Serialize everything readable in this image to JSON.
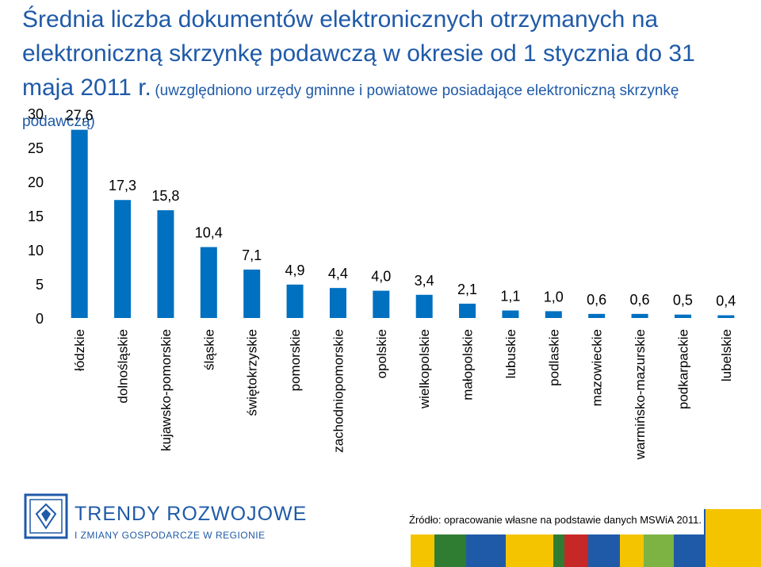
{
  "title": {
    "main": "Średnia liczba dokumentów elektronicznych otrzymanych na elektroniczną skrzynkę podawczą w okresie od 1 stycznia do 31 maja 2011 r.",
    "subtitle": "(uwzględniono urzędy gminne i powiatowe posiadające elektroniczną skrzynkę podawczą)"
  },
  "chart_data": {
    "type": "bar",
    "categories": [
      "łódzkie",
      "dolnośląskie",
      "kujawsko-pomorskie",
      "śląskie",
      "świętokrzyskie",
      "pomorskie",
      "zachodniopomorskie",
      "opolskie",
      "wielkopolskie",
      "małopolskie",
      "lubuskie",
      "podlaskie",
      "mazowieckie",
      "warmińsko-mazurskie",
      "podkarpackie",
      "lubelskie"
    ],
    "values": [
      27.6,
      17.3,
      15.8,
      10.4,
      7.1,
      4.9,
      4.4,
      4.0,
      3.4,
      2.1,
      1.1,
      1.0,
      0.6,
      0.6,
      0.5,
      0.4
    ],
    "value_labels": [
      "27,6",
      "17,3",
      "15,8",
      "10,4",
      "7,1",
      "4,9",
      "4,4",
      "4,0",
      "3,4",
      "2,1",
      "1,1",
      "1,0",
      "0,6",
      "0,6",
      "0,5",
      "0,4"
    ],
    "y_ticks": [
      "0",
      "5",
      "10",
      "15",
      "20",
      "25",
      "30"
    ],
    "ylim": [
      0,
      30
    ],
    "grid": false,
    "bar_color": "#0070c0"
  },
  "footer": {
    "logo_name": "TRENDY ROZWOJOWE",
    "logo_tagline": "I ZMIANY GOSPODARCZE W REGIONIE",
    "source": "Źródło: opracowanie własne na podstawie danych MSWiA 2011.",
    "stripe_colors": [
      "#f5c400",
      "#2e7d32",
      "#1f5aa8",
      "#c62828",
      "#ffffff",
      "#7cb342"
    ]
  }
}
